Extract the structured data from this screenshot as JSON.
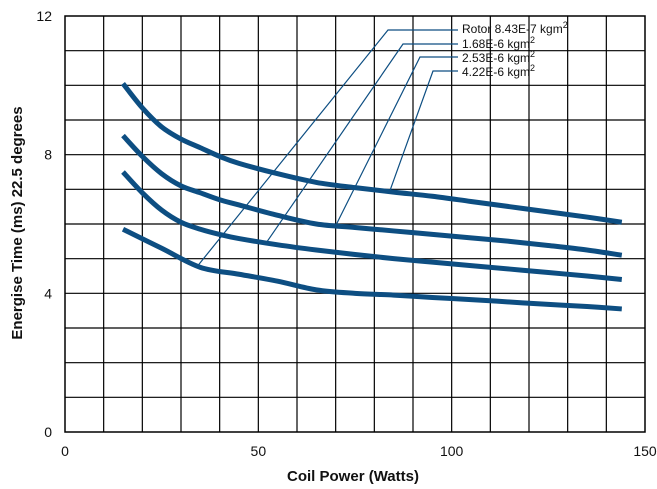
{
  "chart_data": {
    "type": "line",
    "xlabel": "Coil Power (Watts)",
    "ylabel": "Energise Time (ms) 22.5 degrees",
    "xlim": [
      0,
      150
    ],
    "ylim": [
      0,
      12
    ],
    "x_ticks": [
      0,
      50,
      100,
      150
    ],
    "y_ticks": [
      0,
      4,
      8,
      12
    ],
    "grid": true,
    "minor_grid_x_step": 10,
    "minor_grid_y_step": 1,
    "line_color": "#0d4e82",
    "legend_placement": "top-right",
    "series": [
      {
        "name": "Rotor 8.43E-7 kgm",
        "superscript": "2",
        "x": [
          15,
          25,
          35,
          45,
          55,
          65,
          75,
          85,
          95,
          105,
          115,
          125,
          135,
          144
        ],
        "y": [
          5.85,
          5.3,
          4.75,
          4.55,
          4.35,
          4.1,
          4.0,
          3.95,
          3.88,
          3.82,
          3.75,
          3.68,
          3.62,
          3.55
        ],
        "leader_point": [
          34,
          4.75
        ]
      },
      {
        "name": "1.68E-6 kgm",
        "superscript": "2",
        "x": [
          15,
          20,
          25,
          30,
          35,
          40,
          45,
          55,
          65,
          75,
          85,
          95,
          105,
          115,
          125,
          135,
          144
        ],
        "y": [
          7.5,
          6.9,
          6.4,
          6.05,
          5.85,
          5.7,
          5.58,
          5.4,
          5.25,
          5.12,
          5.0,
          4.9,
          4.8,
          4.7,
          4.6,
          4.5,
          4.4
        ],
        "leader_point": [
          52,
          5.45
        ]
      },
      {
        "name": "2.53E-6 kgm",
        "superscript": "2",
        "x": [
          15,
          20,
          25,
          30,
          35,
          40,
          45,
          55,
          65,
          75,
          85,
          95,
          105,
          115,
          125,
          135,
          144
        ],
        "y": [
          8.55,
          7.95,
          7.45,
          7.1,
          6.9,
          6.7,
          6.55,
          6.25,
          6.0,
          5.9,
          5.8,
          5.7,
          5.6,
          5.5,
          5.38,
          5.25,
          5.1
        ],
        "leader_point": [
          70,
          5.95
        ]
      },
      {
        "name": "4.22E-6 kgm",
        "superscript": "2",
        "x": [
          15,
          20,
          25,
          30,
          35,
          40,
          45,
          55,
          65,
          75,
          85,
          95,
          105,
          115,
          125,
          135,
          144
        ],
        "y": [
          10.05,
          9.35,
          8.8,
          8.45,
          8.2,
          7.95,
          7.75,
          7.45,
          7.2,
          7.05,
          6.92,
          6.8,
          6.65,
          6.5,
          6.35,
          6.2,
          6.05
        ],
        "leader_point": [
          84,
          6.95
        ]
      }
    ]
  }
}
